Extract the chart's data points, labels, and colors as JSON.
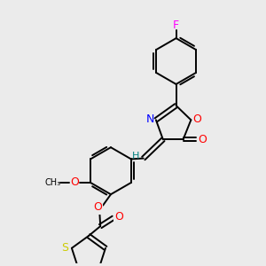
{
  "bg_color": "#ebebeb",
  "atom_colors": {
    "F": "#ff00ff",
    "O": "#ff0000",
    "N": "#0000ff",
    "S": "#cccc00",
    "C": "#000000",
    "H": "#008080",
    "bond": "#000000"
  },
  "lw": 1.4,
  "fs": 8.5,
  "figsize": [
    3.0,
    3.0
  ],
  "dpi": 100
}
